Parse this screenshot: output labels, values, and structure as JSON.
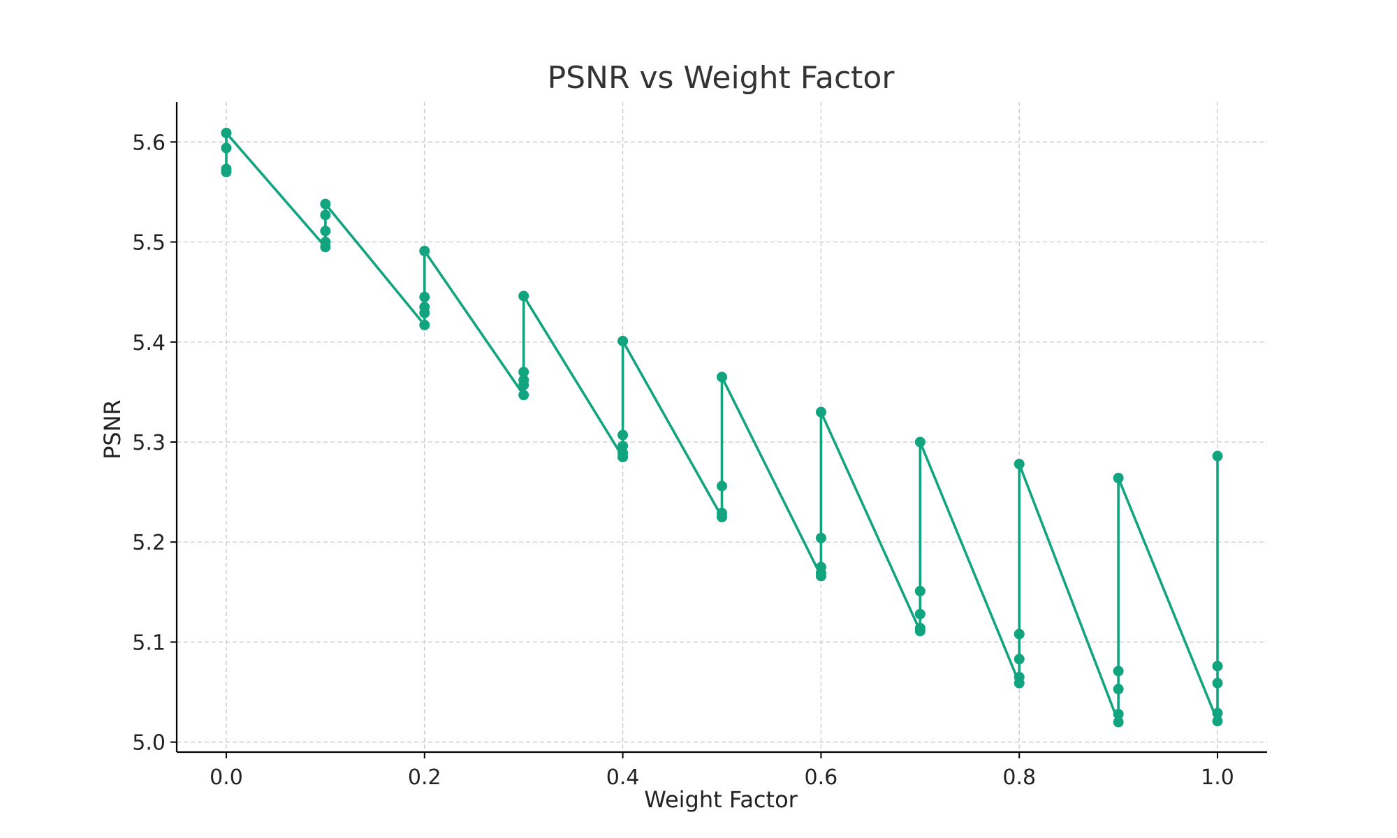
{
  "chart_data": {
    "type": "line",
    "title": "PSNR vs Weight Factor",
    "xlabel": "Weight Factor",
    "ylabel": "PSNR",
    "xlim": [
      -0.05,
      1.05
    ],
    "ylim": [
      4.99,
      5.64
    ],
    "grid": true,
    "color": "#12a37f",
    "x_ticks": [
      0.0,
      0.2,
      0.4,
      0.6,
      0.8,
      1.0
    ],
    "x_tick_labels": [
      "0.0",
      "0.2",
      "0.4",
      "0.6",
      "0.8",
      "1.0"
    ],
    "y_ticks": [
      5.0,
      5.1,
      5.2,
      5.3,
      5.4,
      5.5,
      5.6
    ],
    "y_tick_labels": [
      "5.0",
      "5.1",
      "5.2",
      "5.3",
      "5.4",
      "5.5",
      "5.6"
    ],
    "series": [
      {
        "x": [
          0.0,
          0.0,
          0.0,
          0.0,
          0.1,
          0.1,
          0.1,
          0.1,
          0.1,
          0.2,
          0.2,
          0.2,
          0.2,
          0.2,
          0.3,
          0.3,
          0.3,
          0.3,
          0.3,
          0.4,
          0.4,
          0.4,
          0.4,
          0.4,
          0.5,
          0.5,
          0.5,
          0.5,
          0.6,
          0.6,
          0.6,
          0.6,
          0.6,
          0.7,
          0.7,
          0.7,
          0.7,
          0.7,
          0.8,
          0.8,
          0.8,
          0.8,
          0.8,
          0.9,
          0.9,
          0.9,
          0.9,
          0.9,
          1.0,
          1.0,
          1.0,
          1.0,
          1.0
        ],
        "y": [
          5.57,
          5.573,
          5.594,
          5.609,
          5.495,
          5.5,
          5.511,
          5.527,
          5.538,
          5.417,
          5.429,
          5.435,
          5.445,
          5.491,
          5.347,
          5.357,
          5.362,
          5.37,
          5.446,
          5.285,
          5.289,
          5.296,
          5.307,
          5.401,
          5.225,
          5.229,
          5.256,
          5.365,
          5.166,
          5.169,
          5.175,
          5.204,
          5.33,
          5.111,
          5.114,
          5.128,
          5.151,
          5.3,
          5.059,
          5.065,
          5.083,
          5.108,
          5.278,
          5.02,
          5.028,
          5.053,
          5.071,
          5.264,
          5.021,
          5.029,
          5.059,
          5.076,
          5.286
        ]
      }
    ]
  }
}
